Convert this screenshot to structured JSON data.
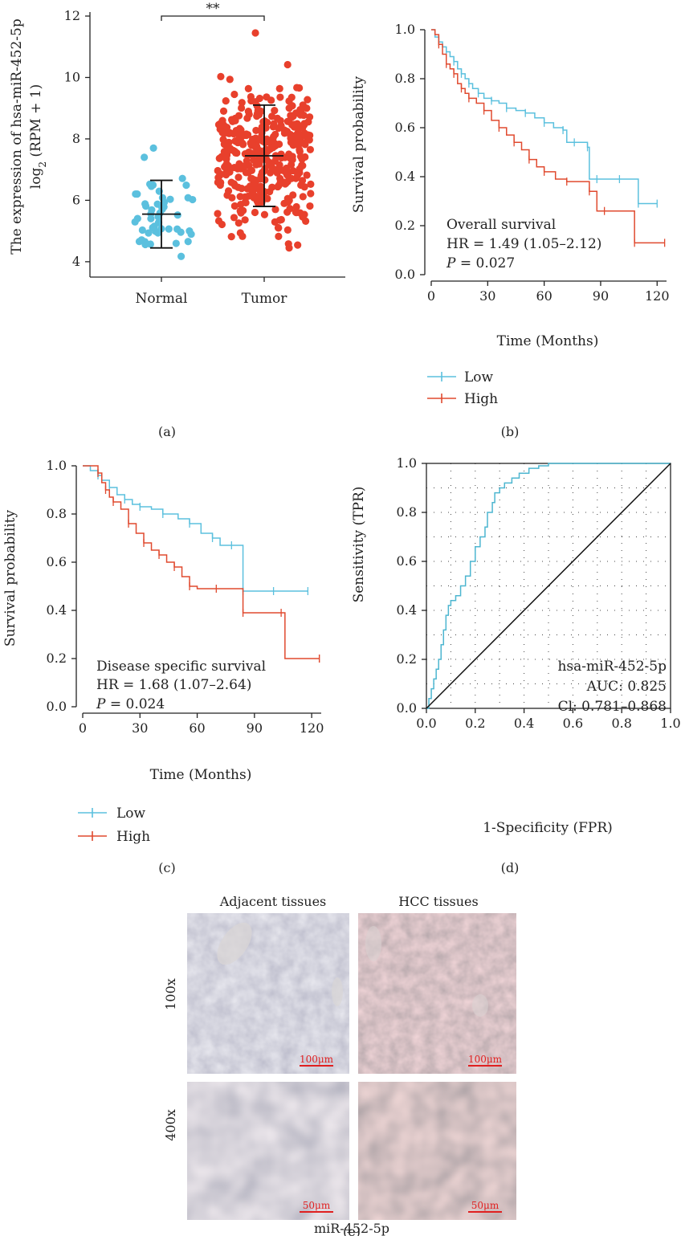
{
  "panels": {
    "a": "(a)",
    "b": "(b)",
    "c": "(c)",
    "d": "(d)",
    "e": "(e)"
  },
  "colors": {
    "normal": "#5BC0DE",
    "tumor": "#E8402C",
    "low": "#5BC0DE",
    "high": "#E04A2F",
    "roc": "#4DB6D0",
    "axis": "#222222"
  },
  "chart_data": [
    {
      "panel": "a",
      "type": "scatter",
      "title": "",
      "ylabel": "The expression of hsa-miR-452-5p",
      "ylabel_line2": "log",
      "ylabel_sub": "2",
      "ylabel_tail": " (RPM + 1)",
      "categories": [
        "Normal",
        "Tumor"
      ],
      "ylim": [
        3.5,
        12
      ],
      "yticks": [
        4,
        6,
        8,
        10,
        12
      ],
      "significance": "**",
      "groups": [
        {
          "name": "Normal",
          "mean": 5.55,
          "sd_low": 4.45,
          "sd_high": 6.65,
          "n": 50,
          "min": 3.7,
          "max": 7.7
        },
        {
          "name": "Tumor",
          "mean": 7.45,
          "sd_low": 5.8,
          "sd_high": 9.1,
          "n": 370,
          "min": 3.6,
          "max": 11.45
        }
      ]
    },
    {
      "panel": "b",
      "type": "line",
      "ylabel": "Survival probability",
      "xlabel": "Time (Months)",
      "xlim": [
        0,
        125
      ],
      "ylim": [
        0,
        1
      ],
      "xticks": [
        0,
        30,
        60,
        90,
        120
      ],
      "yticks": [
        0.0,
        0.2,
        0.4,
        0.6,
        0.8,
        1.0
      ],
      "annotation": [
        "Overall survival",
        "HR = 1.49 (1.05–2.12)",
        "P",
        " = 0.027"
      ],
      "legend": [
        "Low",
        "High"
      ],
      "series": [
        {
          "name": "Low",
          "x": [
            0,
            2,
            4,
            6,
            8,
            10,
            12,
            14,
            16,
            18,
            20,
            22,
            25,
            28,
            32,
            36,
            40,
            45,
            50,
            55,
            60,
            65,
            70,
            72,
            76,
            80,
            83,
            84,
            88,
            95,
            100,
            108,
            110,
            120
          ],
          "y": [
            1.0,
            0.97,
            0.95,
            0.93,
            0.91,
            0.89,
            0.87,
            0.84,
            0.82,
            0.8,
            0.78,
            0.76,
            0.74,
            0.72,
            0.71,
            0.7,
            0.68,
            0.67,
            0.66,
            0.64,
            0.62,
            0.6,
            0.59,
            0.54,
            0.54,
            0.54,
            0.52,
            0.39,
            0.39,
            0.39,
            0.39,
            0.39,
            0.29,
            0.29
          ]
        },
        {
          "name": "High",
          "x": [
            0,
            2,
            4,
            6,
            8,
            10,
            12,
            14,
            16,
            18,
            20,
            24,
            28,
            32,
            36,
            40,
            44,
            48,
            52,
            56,
            60,
            66,
            72,
            78,
            84,
            88,
            92,
            106,
            108,
            124
          ],
          "y": [
            1.0,
            0.98,
            0.94,
            0.9,
            0.86,
            0.84,
            0.82,
            0.78,
            0.76,
            0.74,
            0.72,
            0.7,
            0.67,
            0.63,
            0.6,
            0.57,
            0.54,
            0.51,
            0.47,
            0.44,
            0.42,
            0.39,
            0.38,
            0.38,
            0.34,
            0.26,
            0.26,
            0.26,
            0.13,
            0.13
          ]
        }
      ]
    },
    {
      "panel": "c",
      "type": "line",
      "ylabel": "Survival probability",
      "xlabel": "Time (Months)",
      "xlim": [
        0,
        125
      ],
      "ylim": [
        0,
        1
      ],
      "xticks": [
        0,
        30,
        60,
        90,
        120
      ],
      "yticks": [
        0.0,
        0.2,
        0.4,
        0.6,
        0.8,
        1.0
      ],
      "annotation": [
        "Disease specific survival",
        "HR = 1.68 (1.07–2.64)",
        "P",
        " = 0.024"
      ],
      "legend": [
        "Low",
        "High"
      ],
      "series": [
        {
          "name": "Low",
          "x": [
            0,
            4,
            8,
            10,
            14,
            18,
            22,
            26,
            30,
            36,
            42,
            50,
            56,
            62,
            68,
            72,
            78,
            82,
            84,
            90,
            100,
            118
          ],
          "y": [
            1.0,
            0.98,
            0.96,
            0.94,
            0.91,
            0.88,
            0.86,
            0.84,
            0.83,
            0.82,
            0.8,
            0.78,
            0.76,
            0.72,
            0.7,
            0.67,
            0.67,
            0.67,
            0.48,
            0.48,
            0.48,
            0.48
          ]
        },
        {
          "name": "High",
          "x": [
            0,
            6,
            8,
            10,
            12,
            14,
            16,
            20,
            24,
            28,
            32,
            36,
            40,
            44,
            48,
            52,
            56,
            60,
            70,
            82,
            84,
            92,
            104,
            106,
            124
          ],
          "y": [
            1.0,
            1.0,
            0.97,
            0.93,
            0.9,
            0.87,
            0.85,
            0.82,
            0.76,
            0.72,
            0.68,
            0.65,
            0.63,
            0.6,
            0.58,
            0.54,
            0.5,
            0.49,
            0.49,
            0.49,
            0.39,
            0.39,
            0.39,
            0.2,
            0.2
          ]
        }
      ]
    },
    {
      "panel": "d",
      "type": "line",
      "ylabel": "Sensitivity (TPR)",
      "xlabel": "1-Specificity (FPR)",
      "xlim": [
        0,
        1
      ],
      "ylim": [
        0,
        1
      ],
      "xticks": [
        0.0,
        0.2,
        0.4,
        0.6,
        0.8,
        1.0
      ],
      "yticks": [
        0.0,
        0.2,
        0.4,
        0.6,
        0.8,
        1.0
      ],
      "grid": true,
      "annotation": [
        "hsa-miR-452-5p",
        "AUC: 0.825",
        "Cl: 0.781–0.868"
      ],
      "series": [
        {
          "name": "hsa-miR-452-5p",
          "x": [
            0,
            0.01,
            0.02,
            0.03,
            0.04,
            0.05,
            0.06,
            0.07,
            0.08,
            0.09,
            0.1,
            0.12,
            0.14,
            0.16,
            0.18,
            0.2,
            0.22,
            0.24,
            0.25,
            0.27,
            0.28,
            0.3,
            0.32,
            0.35,
            0.38,
            0.42,
            0.46,
            0.5,
            0.6,
            0.7,
            0.8,
            1.0
          ],
          "y": [
            0,
            0.04,
            0.08,
            0.12,
            0.16,
            0.2,
            0.26,
            0.32,
            0.38,
            0.42,
            0.44,
            0.46,
            0.5,
            0.54,
            0.6,
            0.66,
            0.7,
            0.74,
            0.8,
            0.84,
            0.88,
            0.9,
            0.92,
            0.94,
            0.96,
            0.98,
            0.99,
            1.0,
            1.0,
            1.0,
            1.0,
            1.0
          ]
        },
        {
          "name": "reference",
          "x": [
            0,
            1
          ],
          "y": [
            0,
            1
          ]
        }
      ]
    }
  ],
  "histology": {
    "columns": [
      "Adjacent tissues",
      "HCC tissues"
    ],
    "rows": [
      "100x",
      "400x"
    ],
    "scalebars": [
      "100μm",
      "100μm",
      "50μm",
      "50μm"
    ],
    "caption": "miR-452-5p"
  }
}
